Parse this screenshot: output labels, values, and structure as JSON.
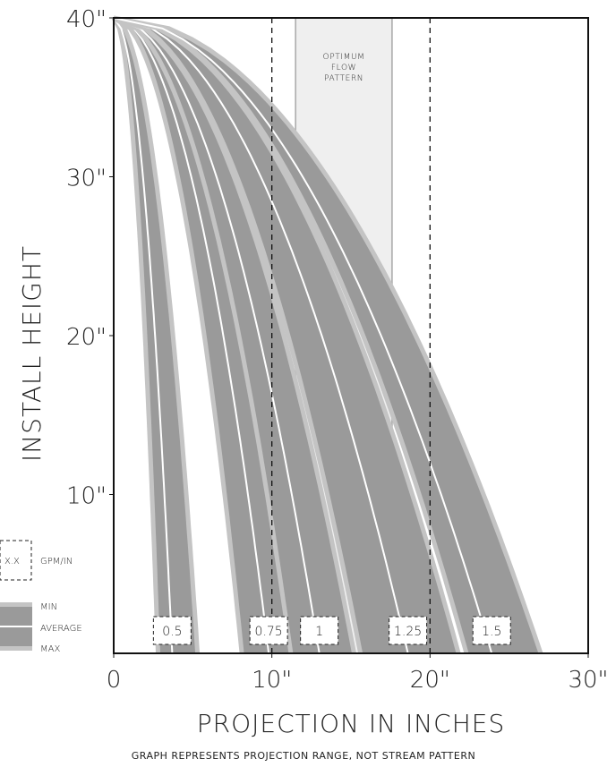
{
  "chart_data": {
    "type": "line",
    "xlabel": "PROJECTION IN INCHES",
    "ylabel": "INSTALL HEIGHT",
    "xlim": [
      0,
      30
    ],
    "ylim": [
      0,
      40
    ],
    "x_ticks": [
      "0",
      "10\"",
      "20\"",
      "30\""
    ],
    "y_ticks": [
      "10\"",
      "20\"",
      "30\"",
      "40\""
    ],
    "x_tick_values": [
      0,
      10,
      20,
      30
    ],
    "y_tick_values": [
      10,
      20,
      30,
      40
    ],
    "optimum_zone": {
      "label": [
        "OPTIMUM",
        "FLOW",
        "PATTERN"
      ],
      "x_range": [
        11.5,
        17.6
      ]
    },
    "reference_lines_x": [
      10,
      20
    ],
    "legend": {
      "gpm_sample": "X.X",
      "gpm_label": "GPM/IN",
      "min": "MIN",
      "average": "AVERAGE",
      "max": "MAX"
    },
    "series": [
      {
        "name": "0.5",
        "min": 2.8,
        "average": 3.7,
        "max": 5.3
      },
      {
        "name": "0.75",
        "min": 8.1,
        "average": 9.8,
        "max": 11.3
      },
      {
        "name": "1",
        "min": 11.2,
        "average": 13.0,
        "max": 15.2
      },
      {
        "name": "1.25",
        "min": 15.6,
        "average": 18.6,
        "max": 21.8
      },
      {
        "name": "1.5",
        "min": 22.3,
        "average": 23.9,
        "max": 27.0
      }
    ],
    "origin_height": 40,
    "note": "GRAPH REPRESENTS PROJECTION RANGE, NOT STREAM PATTERN"
  },
  "colors": {
    "band": "#9a9a9a",
    "edge": "#c4c4c4",
    "average": "#ffffff",
    "zone": "#efefef",
    "zone_border": "#a8a8a8",
    "axis": "#111111"
  }
}
